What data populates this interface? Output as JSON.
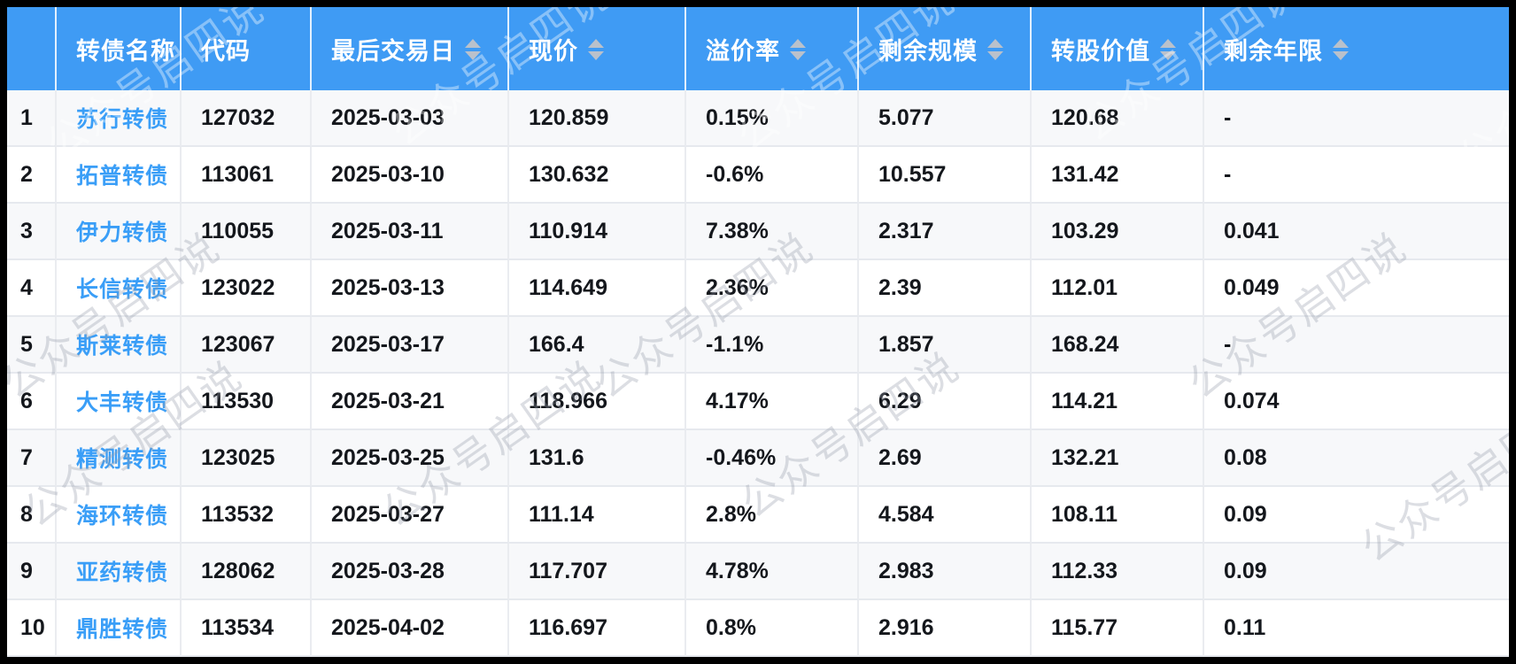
{
  "watermark": {
    "text": "公众号启四说"
  },
  "colors": {
    "header_bg": "#3f9bf4",
    "link": "#3a9ef7",
    "body_text": "#14171c",
    "stripe_row_bg": "#f7f8fa",
    "sort_arrow": "#bac1cb",
    "frame": "#000000"
  },
  "table": {
    "columns": [
      {
        "key": "index",
        "label": "",
        "sortable": false
      },
      {
        "key": "name",
        "label": "转债名称",
        "sortable": false
      },
      {
        "key": "code",
        "label": "代码",
        "sortable": false
      },
      {
        "key": "last_trade_date",
        "label": "最后交易日",
        "sortable": true
      },
      {
        "key": "price",
        "label": "现价",
        "sortable": true
      },
      {
        "key": "premium_rate",
        "label": "溢价率",
        "sortable": true
      },
      {
        "key": "remaining_size",
        "label": "剩余规模",
        "sortable": true
      },
      {
        "key": "conversion_value",
        "label": "转股价值",
        "sortable": true
      },
      {
        "key": "remaining_years",
        "label": "剩余年限",
        "sortable": true
      }
    ],
    "rows": [
      [
        "1",
        "苏行转债",
        "127032",
        "2025-03-03",
        "120.859",
        "0.15%",
        "5.077",
        "120.68",
        "-"
      ],
      [
        "2",
        "拓普转债",
        "113061",
        "2025-03-10",
        "130.632",
        "-0.6%",
        "10.557",
        "131.42",
        "-"
      ],
      [
        "3",
        "伊力转债",
        "110055",
        "2025-03-11",
        "110.914",
        "7.38%",
        "2.317",
        "103.29",
        "0.041"
      ],
      [
        "4",
        "长信转债",
        "123022",
        "2025-03-13",
        "114.649",
        "2.36%",
        "2.39",
        "112.01",
        "0.049"
      ],
      [
        "5",
        "斯莱转债",
        "123067",
        "2025-03-17",
        "166.4",
        "-1.1%",
        "1.857",
        "168.24",
        "-"
      ],
      [
        "6",
        "大丰转债",
        "113530",
        "2025-03-21",
        "118.966",
        "4.17%",
        "6.29",
        "114.21",
        "0.074"
      ],
      [
        "7",
        "精测转债",
        "123025",
        "2025-03-25",
        "131.6",
        "-0.46%",
        "2.69",
        "132.21",
        "0.08"
      ],
      [
        "8",
        "海环转债",
        "113532",
        "2025-03-27",
        "111.14",
        "2.8%",
        "4.584",
        "108.11",
        "0.09"
      ],
      [
        "9",
        "亚药转债",
        "128062",
        "2025-03-28",
        "117.707",
        "4.78%",
        "2.983",
        "112.33",
        "0.09"
      ],
      [
        "10",
        "鼎胜转债",
        "113534",
        "2025-04-02",
        "116.697",
        "0.8%",
        "2.916",
        "115.77",
        "0.11"
      ]
    ]
  }
}
